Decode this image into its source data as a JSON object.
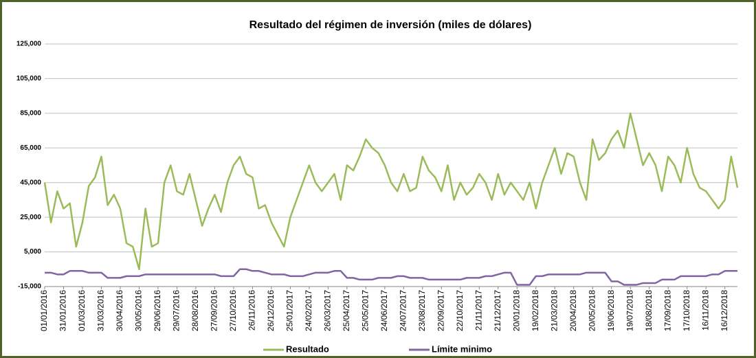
{
  "chart_data": {
    "type": "line",
    "title": "Resultado del régimen de inversión (miles de dólares)",
    "categories": [
      "01/01/2016",
      null,
      null,
      "31/01/2016",
      null,
      null,
      "01/03/2016",
      null,
      null,
      "31/03/2016",
      null,
      null,
      "30/04/2016",
      null,
      null,
      "30/05/2016",
      null,
      null,
      "29/06/2016",
      null,
      null,
      "29/07/2016",
      null,
      null,
      "28/08/2016",
      null,
      null,
      "27/09/2016",
      null,
      null,
      "27/10/2016",
      null,
      null,
      "26/11/2016",
      null,
      null,
      "26/12/2016",
      null,
      null,
      "25/01/2017",
      null,
      null,
      "24/02/2017",
      null,
      null,
      "26/03/2017",
      null,
      null,
      "25/04/2017",
      null,
      null,
      "25/05/2017",
      null,
      null,
      "24/06/2017",
      null,
      null,
      "24/07/2017",
      null,
      null,
      "23/08/2017",
      null,
      null,
      "22/09/2017",
      null,
      null,
      "22/10/2017",
      null,
      null,
      "21/11/2017",
      null,
      null,
      "21/12/2017",
      null,
      null,
      "20/01/2018",
      null,
      null,
      "19/02/2018",
      null,
      null,
      "21/03/2018",
      null,
      null,
      "20/04/2018",
      null,
      null,
      "20/05/2018",
      null,
      null,
      "19/06/2018",
      null,
      null,
      "19/07/2018",
      null,
      null,
      "18/08/2018",
      null,
      null,
      "17/09/2018",
      null,
      null,
      "17/10/2018",
      null,
      null,
      "16/11/2018",
      null,
      null,
      "16/12/2018",
      null,
      null
    ],
    "series": [
      {
        "name": "Resultado",
        "color": "#9bbb59",
        "values": [
          45000,
          22000,
          40000,
          30000,
          33000,
          8000,
          22000,
          43000,
          48000,
          60000,
          32000,
          38000,
          30000,
          10000,
          8000,
          -5000,
          30000,
          8000,
          10000,
          45000,
          55000,
          40000,
          38000,
          50000,
          35000,
          20000,
          30000,
          38000,
          28000,
          45000,
          55000,
          60000,
          50000,
          48000,
          30000,
          32000,
          22000,
          15000,
          8000,
          25000,
          35000,
          45000,
          55000,
          45000,
          40000,
          45000,
          50000,
          35000,
          55000,
          52000,
          60000,
          70000,
          65000,
          62000,
          55000,
          45000,
          40000,
          50000,
          40000,
          42000,
          60000,
          52000,
          48000,
          40000,
          55000,
          35000,
          45000,
          38000,
          42000,
          50000,
          45000,
          35000,
          50000,
          38000,
          45000,
          40000,
          35000,
          45000,
          30000,
          45000,
          55000,
          65000,
          50000,
          62000,
          60000,
          45000,
          35000,
          70000,
          58000,
          62000,
          70000,
          75000,
          65000,
          85000,
          70000,
          55000,
          62000,
          55000,
          40000,
          60000,
          55000,
          45000,
          65000,
          50000,
          42000,
          40000,
          35000,
          30000,
          35000,
          60000,
          42000
        ]
      },
      {
        "name": "Límite minimo",
        "color": "#8064a2",
        "values": [
          -7000,
          -7000,
          -8000,
          -8000,
          -6000,
          -6000,
          -6000,
          -7000,
          -7000,
          -7000,
          -10000,
          -10000,
          -10000,
          -9000,
          -9000,
          -9000,
          -8000,
          -8000,
          -8000,
          -8000,
          -8000,
          -8000,
          -8000,
          -8000,
          -8000,
          -8000,
          -8000,
          -8000,
          -9000,
          -9000,
          -9000,
          -5000,
          -5000,
          -6000,
          -6000,
          -7000,
          -8000,
          -8000,
          -8000,
          -9000,
          -9000,
          -9000,
          -8000,
          -7000,
          -7000,
          -7000,
          -6000,
          -6000,
          -10000,
          -10000,
          -11000,
          -11000,
          -11000,
          -10000,
          -10000,
          -10000,
          -9000,
          -9000,
          -10000,
          -10000,
          -10000,
          -11000,
          -11000,
          -11000,
          -11000,
          -11000,
          -11000,
          -10000,
          -10000,
          -10000,
          -9000,
          -9000,
          -8000,
          -7000,
          -7000,
          -14000,
          -14000,
          -14000,
          -9000,
          -9000,
          -8000,
          -8000,
          -8000,
          -8000,
          -8000,
          -8000,
          -7000,
          -7000,
          -7000,
          -7000,
          -12000,
          -12000,
          -14000,
          -14000,
          -14000,
          -13000,
          -13000,
          -13000,
          -11000,
          -11000,
          -11000,
          -9000,
          -9000,
          -9000,
          -9000,
          -9000,
          -8000,
          -8000,
          -6000,
          -6000,
          -6000
        ]
      }
    ],
    "ylim": [
      -15000,
      125000
    ],
    "yticks": [
      {
        "value": -15000,
        "label": "-15,000"
      },
      {
        "value": 5000,
        "label": "5,000"
      },
      {
        "value": 25000,
        "label": "25,000"
      },
      {
        "value": 45000,
        "label": "45,000"
      },
      {
        "value": 65000,
        "label": "65,000"
      },
      {
        "value": 85000,
        "label": "85,000"
      },
      {
        "value": 105000,
        "label": "105,000"
      },
      {
        "value": 125000,
        "label": "125,000"
      }
    ],
    "grid": true,
    "legend": "bottom"
  }
}
